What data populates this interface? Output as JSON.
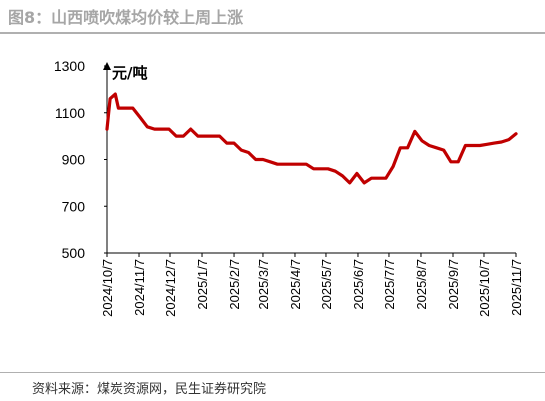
{
  "header": {
    "title": "图8：山西喷吹煤均价较上周上涨"
  },
  "footer": {
    "source": "资料来源：煤炭资源网，民生证券研究院"
  },
  "colors": {
    "line": "#c00000",
    "axis": "#000000",
    "title": "#a6a6a6"
  },
  "chart_data": {
    "type": "line",
    "title": "",
    "xlabel": "",
    "ylabel": "元/吨",
    "ylim": [
      500,
      1300
    ],
    "yticks": [
      500,
      700,
      900,
      1100,
      1300
    ],
    "grid": false,
    "legend": "none",
    "categories": [
      "2024/10/7",
      "2024/11/7",
      "2024/12/7",
      "2025/1/7",
      "2025/2/7",
      "2025/3/7",
      "2025/4/7",
      "2025/5/7",
      "2025/6/7",
      "2025/7/7",
      "2025/8/7",
      "2025/9/7",
      "2025/10/7",
      "2025/11/7"
    ],
    "series": [
      {
        "name": "",
        "x": [
          "2024/10/7",
          "2024/10/10",
          "2024/10/15",
          "2024/10/18",
          "2024/10/25",
          "2024/11/1",
          "2024/11/8",
          "2024/11/15",
          "2024/11/22",
          "2024/11/29",
          "2024/12/6",
          "2024/12/13",
          "2024/12/20",
          "2024/12/27",
          "2025/1/3",
          "2025/1/10",
          "2025/1/17",
          "2025/1/24",
          "2025/1/31",
          "2025/2/7",
          "2025/2/14",
          "2025/2/21",
          "2025/2/28",
          "2025/3/7",
          "2025/3/14",
          "2025/3/21",
          "2025/3/28",
          "2025/4/4",
          "2025/4/11",
          "2025/4/18",
          "2025/4/25",
          "2025/5/2",
          "2025/5/9",
          "2025/5/16",
          "2025/5/23",
          "2025/5/30",
          "2025/6/6",
          "2025/6/13",
          "2025/6/20",
          "2025/6/27",
          "2025/7/4",
          "2025/7/11",
          "2025/7/18",
          "2025/7/25",
          "2025/8/1",
          "2025/8/8",
          "2025/8/15",
          "2025/8/22",
          "2025/8/29",
          "2025/9/5",
          "2025/9/12",
          "2025/9/19",
          "2025/9/26",
          "2025/10/3",
          "2025/10/10",
          "2025/10/17",
          "2025/10/24",
          "2025/10/31",
          "2025/11/7"
        ],
        "values": [
          1030,
          1160,
          1180,
          1120,
          1120,
          1120,
          1080,
          1040,
          1030,
          1030,
          1030,
          1000,
          1000,
          1030,
          1000,
          1000,
          1000,
          1000,
          970,
          970,
          940,
          930,
          900,
          900,
          890,
          880,
          880,
          880,
          880,
          880,
          860,
          860,
          860,
          850,
          830,
          800,
          840,
          800,
          820,
          820,
          820,
          870,
          950,
          950,
          1020,
          980,
          960,
          950,
          940,
          890,
          890,
          960,
          960,
          960,
          965,
          970,
          975,
          985,
          1010
        ]
      }
    ]
  }
}
